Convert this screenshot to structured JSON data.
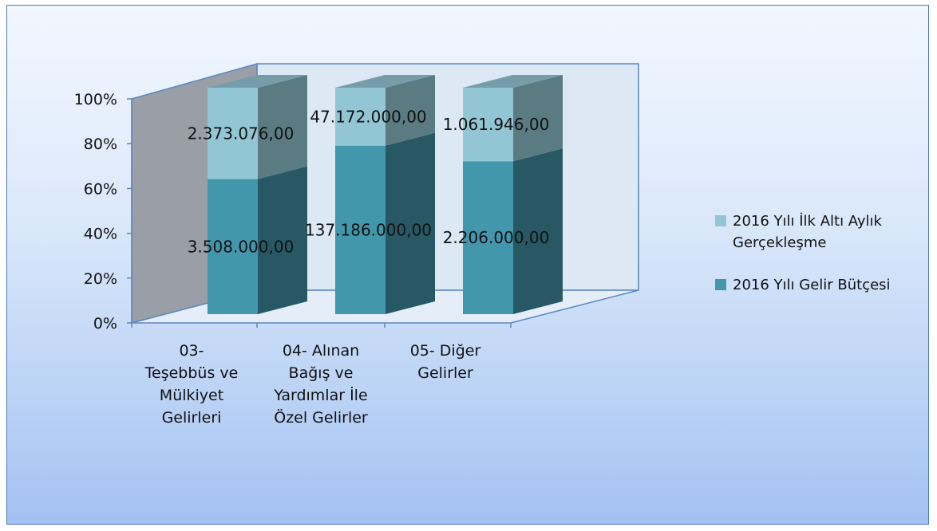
{
  "chart_data": {
    "type": "bar",
    "stacked": "percent",
    "three_d": true,
    "categories": [
      [
        "03-",
        "Teşebbüs ve",
        "Mülkiyet",
        "Gelirleri"
      ],
      [
        "04- Alınan",
        "Bağış ve",
        "Yardımlar İle",
        "Özel Gelirler"
      ],
      [
        "05- Diğer",
        "Gelirler"
      ]
    ],
    "series": [
      {
        "name": "2016 Yılı Gelir Bütçesi",
        "values": [
          3508000,
          137186000,
          2206000
        ],
        "labels": [
          "3.508.000,00",
          "137.186.000,00",
          "2.206.000,00"
        ],
        "color": "#4397ad"
      },
      {
        "name": "2016 Yılı İlk Altı Aylık Gerçekleşme",
        "values": [
          2373076,
          47172000,
          1061946
        ],
        "labels": [
          "2.373.076,00",
          "47.172.000,00",
          "1.061.946,00"
        ],
        "color": "#93c6d4"
      }
    ],
    "y_ticks": [
      "0%",
      "20%",
      "40%",
      "60%",
      "80%",
      "100%"
    ],
    "ylim": [
      0,
      100
    ],
    "legend": {
      "position": "right",
      "entries": [
        {
          "lines": [
            "2016 Yılı İlk Altı Aylık",
            "Gerçekleşme"
          ],
          "color": "#93c6d4"
        },
        {
          "lines": [
            "2016 Yılı Gelir Bütçesi"
          ],
          "color": "#4397ad"
        }
      ]
    },
    "grid": false
  }
}
